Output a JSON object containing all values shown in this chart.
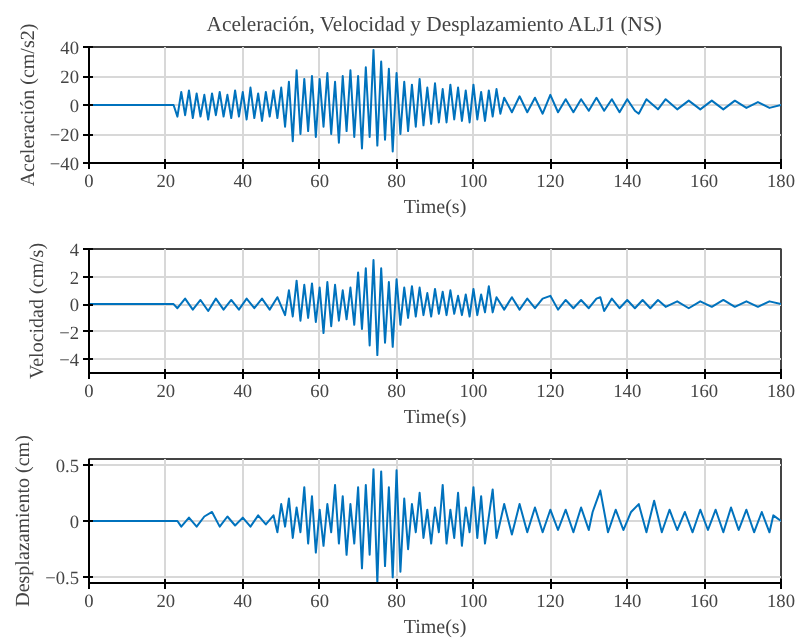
{
  "chart_data": [
    {
      "type": "line",
      "title": "Aceleración, Velocidad y Desplazamiento ALJ1 (NS)",
      "xlabel": "Time(s)",
      "ylabel": "Aceleración (cm/s2)",
      "xlim": [
        0,
        180
      ],
      "xticks": [
        0,
        20,
        40,
        60,
        80,
        100,
        120,
        140,
        160,
        180
      ],
      "ylim": [
        -40,
        40
      ],
      "yticks": [
        -40,
        -20,
        0,
        20,
        40
      ],
      "grid": true,
      "line_style": "solid",
      "series": [
        {
          "color": "#0072bd",
          "x": [
            0,
            22,
            23,
            24,
            25,
            26,
            27,
            28,
            29,
            30,
            31,
            32,
            33,
            34,
            35,
            36,
            37,
            38,
            39,
            40,
            41,
            42,
            43,
            44,
            45,
            46,
            47,
            48,
            49,
            50,
            51,
            52,
            53,
            54,
            55,
            56,
            57,
            58,
            59,
            60,
            61,
            62,
            63,
            64,
            65,
            66,
            67,
            68,
            69,
            70,
            71,
            72,
            73,
            74,
            75,
            76,
            77,
            78,
            79,
            80,
            81,
            82,
            83,
            84,
            85,
            86,
            87,
            88,
            89,
            90,
            91,
            92,
            93,
            94,
            95,
            96,
            97,
            98,
            99,
            100,
            101,
            102,
            103,
            104,
            105,
            106,
            107,
            108,
            110,
            112,
            114,
            116,
            118,
            120,
            122,
            124,
            126,
            128,
            130,
            132,
            134,
            136,
            138,
            140,
            142,
            143,
            145,
            148,
            150,
            153,
            156,
            159,
            162,
            165,
            168,
            171,
            174,
            177,
            180
          ],
          "values": [
            0,
            0,
            -8,
            9,
            -7,
            10,
            -9,
            8,
            -8,
            7,
            -10,
            8,
            -7,
            9,
            -8,
            7,
            -9,
            10,
            -8,
            9,
            -10,
            12,
            -9,
            8,
            -11,
            9,
            -8,
            10,
            -9,
            12,
            -15,
            16,
            -25,
            24,
            -20,
            18,
            -18,
            20,
            -22,
            18,
            -15,
            22,
            -20,
            16,
            -26,
            20,
            -18,
            24,
            -22,
            20,
            -30,
            26,
            -22,
            38,
            -28,
            30,
            -24,
            25,
            -32,
            22,
            -20,
            16,
            -18,
            14,
            -15,
            18,
            -14,
            12,
            -13,
            15,
            -12,
            11,
            -12,
            14,
            -10,
            12,
            -11,
            10,
            -12,
            14,
            -10,
            9,
            -11,
            10,
            -8,
            11,
            -6,
            5,
            -5,
            6,
            -5,
            5,
            -6,
            7,
            -5,
            4,
            -5,
            4,
            -4,
            5,
            -4,
            4,
            -5,
            4,
            -4,
            -6,
            4,
            -3,
            4,
            -3,
            3,
            -3,
            3,
            -3,
            3,
            -2,
            2,
            -2,
            0
          ]
        }
      ]
    },
    {
      "type": "line",
      "xlabel": "Time(s)",
      "ylabel": "Velocidad (cm/s)",
      "xlim": [
        0,
        180
      ],
      "xticks": [
        0,
        20,
        40,
        60,
        80,
        100,
        120,
        140,
        160,
        180
      ],
      "ylim": [
        -5,
        4
      ],
      "yticks": [
        -4,
        -2,
        0,
        2,
        4
      ],
      "grid": true,
      "line_style": "solid",
      "series": [
        {
          "color": "#0072bd",
          "x": [
            0,
            22,
            23,
            25,
            27,
            29,
            31,
            33,
            35,
            37,
            39,
            41,
            43,
            45,
            47,
            49,
            51,
            52,
            53,
            54,
            55,
            56,
            57,
            58,
            59,
            60,
            61,
            62,
            63,
            64,
            65,
            66,
            67,
            68,
            69,
            70,
            71,
            72,
            73,
            74,
            75,
            76,
            77,
            78,
            79,
            80,
            81,
            82,
            83,
            84,
            85,
            86,
            87,
            88,
            89,
            90,
            91,
            92,
            93,
            94,
            95,
            96,
            97,
            98,
            99,
            100,
            101,
            102,
            103,
            104,
            105,
            106,
            108,
            110,
            112,
            114,
            116,
            118,
            120,
            122,
            124,
            126,
            128,
            130,
            132,
            133,
            134,
            136,
            138,
            140,
            142,
            144,
            146,
            148,
            150,
            153,
            156,
            159,
            162,
            165,
            168,
            171,
            174,
            177,
            180
          ],
          "values": [
            0,
            0,
            -0.3,
            0.4,
            -0.4,
            0.3,
            -0.5,
            0.4,
            -0.4,
            0.3,
            -0.4,
            0.4,
            -0.3,
            0.4,
            -0.4,
            0.5,
            -0.8,
            1.0,
            -0.9,
            1.7,
            -1.2,
            1.4,
            -1.0,
            1.5,
            -1.3,
            1.2,
            -2.1,
            1.6,
            -1.6,
            1.4,
            -1.2,
            1.0,
            -1.1,
            1.2,
            -1.5,
            2.3,
            -1.8,
            2.6,
            -3.0,
            3.2,
            -3.7,
            2.6,
            -2.8,
            1.6,
            -3.1,
            1.8,
            -1.5,
            1.2,
            -1.0,
            1.3,
            -0.9,
            1.2,
            -0.8,
            0.8,
            -0.9,
            1.1,
            -0.7,
            0.9,
            -0.8,
            1.0,
            -0.7,
            0.6,
            -0.8,
            0.7,
            -0.9,
            1.1,
            -0.8,
            0.7,
            -0.6,
            1.3,
            -0.6,
            0.5,
            -0.4,
            0.5,
            -0.4,
            0.4,
            -0.3,
            0.4,
            0.6,
            -0.4,
            0.3,
            -0.3,
            0.3,
            -0.3,
            0.4,
            0.5,
            -0.5,
            0.4,
            -0.3,
            0.3,
            -0.3,
            0.3,
            -0.3,
            0.3,
            -0.2,
            0.2,
            -0.3,
            0.2,
            -0.2,
            0.3,
            -0.2,
            0.2,
            -0.2,
            0.2,
            0
          ]
        }
      ]
    },
    {
      "type": "line",
      "xlabel": "Time(s)",
      "ylabel": "Desplazamiento (cm)",
      "xlim": [
        0,
        180
      ],
      "xticks": [
        0,
        20,
        40,
        60,
        80,
        100,
        120,
        140,
        160,
        180
      ],
      "ylim": [
        -0.55,
        0.55
      ],
      "yticks": [
        -0.5,
        0,
        0.5
      ],
      "grid": true,
      "line_style": "solid",
      "series": [
        {
          "color": "#0072bd",
          "x": [
            0,
            23,
            24,
            26,
            28,
            30,
            32,
            34,
            36,
            38,
            40,
            42,
            44,
            46,
            48,
            49,
            50,
            51,
            52,
            53,
            54,
            55,
            56,
            57,
            58,
            59,
            60,
            61,
            62,
            63,
            64,
            65,
            66,
            67,
            68,
            69,
            70,
            71,
            72,
            73,
            74,
            75,
            76,
            77,
            78,
            79,
            80,
            81,
            82,
            83,
            84,
            85,
            86,
            87,
            88,
            89,
            90,
            91,
            92,
            93,
            94,
            95,
            96,
            97,
            98,
            99,
            100,
            101,
            102,
            103,
            105,
            106,
            108,
            110,
            112,
            114,
            116,
            118,
            120,
            122,
            124,
            126,
            128,
            130,
            131,
            133,
            135,
            137,
            139,
            141,
            143,
            145,
            147,
            149,
            151,
            153,
            155,
            157,
            159,
            161,
            163,
            165,
            167,
            169,
            171,
            173,
            175,
            177,
            178,
            180
          ],
          "values": [
            0,
            0,
            -0.05,
            0.03,
            -0.05,
            0.04,
            0.08,
            -0.05,
            0.04,
            -0.04,
            0.03,
            -0.05,
            0.05,
            -0.03,
            0.05,
            -0.1,
            0.15,
            -0.05,
            0.2,
            -0.15,
            0.12,
            -0.1,
            0.3,
            -0.2,
            0.22,
            -0.28,
            0.1,
            -0.22,
            0.15,
            -0.1,
            0.32,
            -0.2,
            0.22,
            -0.3,
            0.15,
            -0.2,
            0.3,
            -0.42,
            0.32,
            -0.3,
            0.46,
            -0.55,
            0.44,
            -0.4,
            0.3,
            -0.5,
            0.45,
            -0.45,
            0.2,
            -0.25,
            0.15,
            -0.1,
            0.25,
            -0.15,
            0.1,
            -0.2,
            0.12,
            -0.1,
            0.32,
            -0.2,
            0.1,
            -0.15,
            0.25,
            -0.22,
            0.12,
            -0.1,
            0.3,
            -0.15,
            0.22,
            -0.2,
            0.28,
            -0.15,
            0.15,
            -0.12,
            0.15,
            -0.1,
            0.12,
            -0.1,
            0.1,
            -0.08,
            0.1,
            -0.1,
            0.12,
            -0.08,
            0.08,
            0.27,
            -0.1,
            0.1,
            -0.08,
            0.08,
            0.15,
            -0.1,
            0.18,
            -0.1,
            0.1,
            -0.08,
            0.08,
            -0.1,
            0.1,
            -0.08,
            0.1,
            -0.1,
            0.12,
            -0.08,
            0.1,
            -0.1,
            0.08,
            -0.1,
            0.05,
            0
          ]
        }
      ]
    }
  ]
}
